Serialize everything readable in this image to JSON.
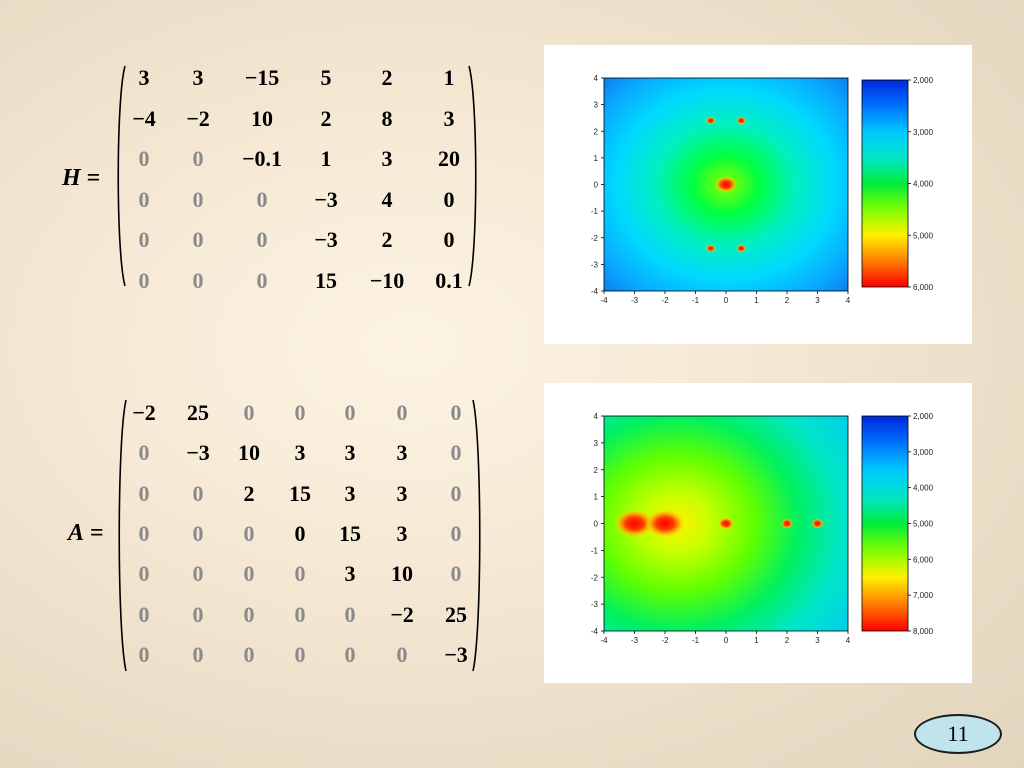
{
  "matrices": [
    {
      "label_var": "H",
      "label_eq": " =",
      "rows": [
        [
          "3",
          "3",
          "−15",
          "5",
          "2",
          "1"
        ],
        [
          "−4",
          "−2",
          "10",
          "2",
          "8",
          "3"
        ],
        [
          "0",
          "0",
          "−0.1",
          "1",
          "3",
          "20"
        ],
        [
          "0",
          "0",
          "0",
          "−3",
          "4",
          "0"
        ],
        [
          "0",
          "0",
          "0",
          "−3",
          "2",
          "0"
        ],
        [
          "0",
          "0",
          "0",
          "15",
          "−10",
          "0.1"
        ]
      ],
      "gray_cells": [
        [
          2,
          0
        ],
        [
          2,
          1
        ],
        [
          3,
          0
        ],
        [
          3,
          1
        ],
        [
          3,
          2
        ],
        [
          4,
          0
        ],
        [
          4,
          1
        ],
        [
          4,
          2
        ],
        [
          5,
          0
        ],
        [
          5,
          1
        ],
        [
          5,
          2
        ]
      ]
    },
    {
      "label_var": "A",
      "label_eq": " =",
      "rows": [
        [
          "−2",
          "25",
          "0",
          "0",
          "0",
          "0",
          "0"
        ],
        [
          "0",
          "−3",
          "10",
          "3",
          "3",
          "3",
          "0"
        ],
        [
          "0",
          "0",
          "2",
          "15",
          "3",
          "3",
          "0"
        ],
        [
          "0",
          "0",
          "0",
          "0",
          "15",
          "3",
          "0"
        ],
        [
          "0",
          "0",
          "0",
          "0",
          "3",
          "10",
          "0"
        ],
        [
          "0",
          "0",
          "0",
          "0",
          "0",
          "−2",
          "25"
        ],
        [
          "0",
          "0",
          "0",
          "0",
          "0",
          "0",
          "−3"
        ]
      ],
      "gray_cells": [
        [
          0,
          2
        ],
        [
          0,
          3
        ],
        [
          0,
          4
        ],
        [
          0,
          5
        ],
        [
          0,
          6
        ],
        [
          1,
          0
        ],
        [
          1,
          6
        ],
        [
          2,
          0
        ],
        [
          2,
          1
        ],
        [
          2,
          6
        ],
        [
          3,
          0
        ],
        [
          3,
          1
        ],
        [
          3,
          2
        ],
        [
          3,
          6
        ],
        [
          4,
          0
        ],
        [
          4,
          1
        ],
        [
          4,
          2
        ],
        [
          4,
          3
        ],
        [
          4,
          6
        ],
        [
          5,
          0
        ],
        [
          5,
          1
        ],
        [
          5,
          2
        ],
        [
          5,
          3
        ],
        [
          5,
          4
        ],
        [
          6,
          0
        ],
        [
          6,
          1
        ],
        [
          6,
          2
        ],
        [
          6,
          3
        ],
        [
          6,
          4
        ],
        [
          6,
          5
        ]
      ]
    }
  ],
  "chart_data": [
    {
      "type": "heatmap",
      "title": "",
      "xlabel": "",
      "ylabel": "",
      "xlim": [
        -4,
        4
      ],
      "ylim": [
        -4,
        4
      ],
      "x_ticks": [
        "-4",
        "-3",
        "-2",
        "-1",
        "0",
        "1",
        "2",
        "3",
        "4"
      ],
      "y_ticks": [
        "4",
        "3",
        "2",
        "1",
        "0",
        "-1",
        "-2",
        "-3",
        "-4"
      ],
      "colorbar_labels": [
        "2,000",
        "3,000",
        "4,000",
        "5,000",
        "6,000"
      ],
      "colorbar_range": [
        2,
        6
      ],
      "peaks": [
        {
          "x": 0,
          "y": 0
        },
        {
          "x": -0.5,
          "y": 2.4
        },
        {
          "x": 0.5,
          "y": 2.4
        },
        {
          "x": -0.5,
          "y": -2.4
        },
        {
          "x": 0.5,
          "y": -2.4
        }
      ],
      "grid": false
    },
    {
      "type": "heatmap",
      "title": "",
      "xlabel": "",
      "ylabel": "",
      "xlim": [
        -4,
        4
      ],
      "ylim": [
        -4,
        4
      ],
      "x_ticks": [
        "-4",
        "-3",
        "-2",
        "-1",
        "0",
        "1",
        "2",
        "3",
        "4"
      ],
      "y_ticks": [
        "4",
        "3",
        "2",
        "1",
        "0",
        "-1",
        "-2",
        "-3",
        "-4"
      ],
      "colorbar_labels": [
        "2,000",
        "3,000",
        "4,000",
        "5,000",
        "6,000",
        "7,000",
        "8,000"
      ],
      "colorbar_range": [
        2,
        8
      ],
      "peaks": [
        {
          "x": -3,
          "y": 0
        },
        {
          "x": -2,
          "y": 0
        },
        {
          "x": 0,
          "y": 0
        },
        {
          "x": 2,
          "y": 0
        },
        {
          "x": 3,
          "y": 0
        }
      ],
      "grid": false
    }
  ],
  "page_number": "11"
}
